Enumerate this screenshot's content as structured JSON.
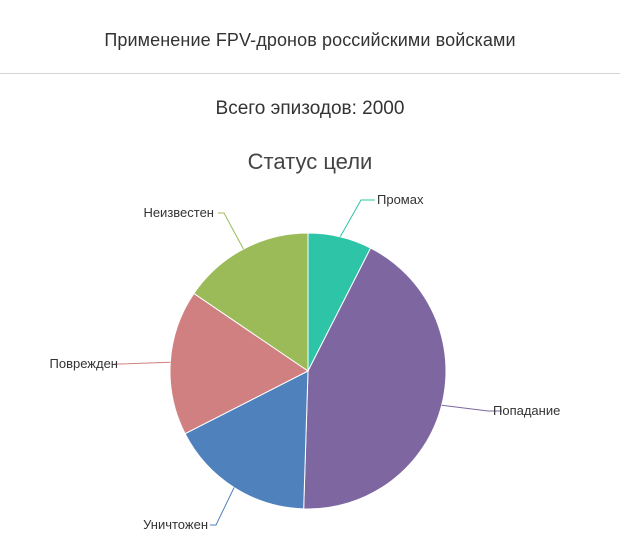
{
  "header": {
    "title": "Применение FPV-дронов российскими войсками"
  },
  "summary": {
    "total_label": "Всего эпизодов: 2000"
  },
  "chart_data": {
    "type": "pie",
    "title": "Статус цели",
    "start_angle_deg": 0,
    "direction": "clockwise",
    "slices": [
      {
        "label": "Промах",
        "value": 7.5,
        "color": "#2ec4a7"
      },
      {
        "label": "Попадание",
        "value": 43.0,
        "color": "#7e67a0"
      },
      {
        "label": "Уничтожен",
        "value": 17.0,
        "color": "#4f81bd"
      },
      {
        "label": "Поврежден",
        "value": 17.0,
        "color": "#d08080"
      },
      {
        "label": "Неизвестен",
        "value": 15.5,
        "color": "#9bbb59"
      }
    ]
  }
}
